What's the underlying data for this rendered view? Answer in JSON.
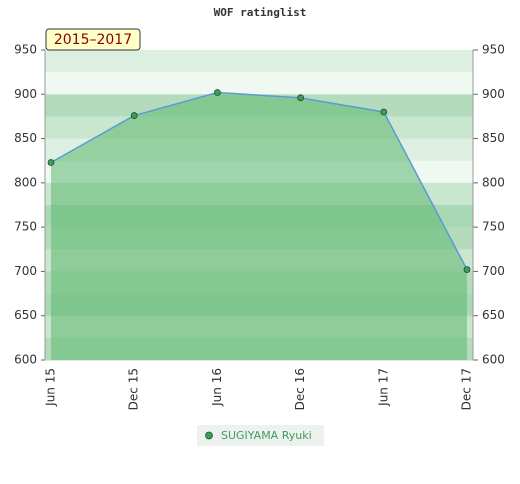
{
  "chart_data": {
    "type": "line",
    "title": "WOF ratinglist",
    "badge": "2015–2017",
    "categories": [
      "Jun 15",
      "Dec 15",
      "Jun 16",
      "Dec 16",
      "Jun 17",
      "Dec 17"
    ],
    "series": [
      {
        "name": "SUGIYAMA Ryuki",
        "color": "#5b9bd5",
        "marker_color": "#3f9a5c",
        "area_color": "#5cb870",
        "values": [
          823,
          876,
          902,
          896,
          880,
          702
        ]
      }
    ],
    "ylim": [
      600,
      950
    ],
    "yticks": [
      600,
      650,
      700,
      750,
      800,
      850,
      900,
      950
    ],
    "y2lim": [
      600,
      950
    ],
    "y2ticks": [
      600,
      650,
      700,
      750,
      800,
      850,
      900,
      950
    ],
    "area": true,
    "grid": true,
    "legend": "bottom"
  }
}
